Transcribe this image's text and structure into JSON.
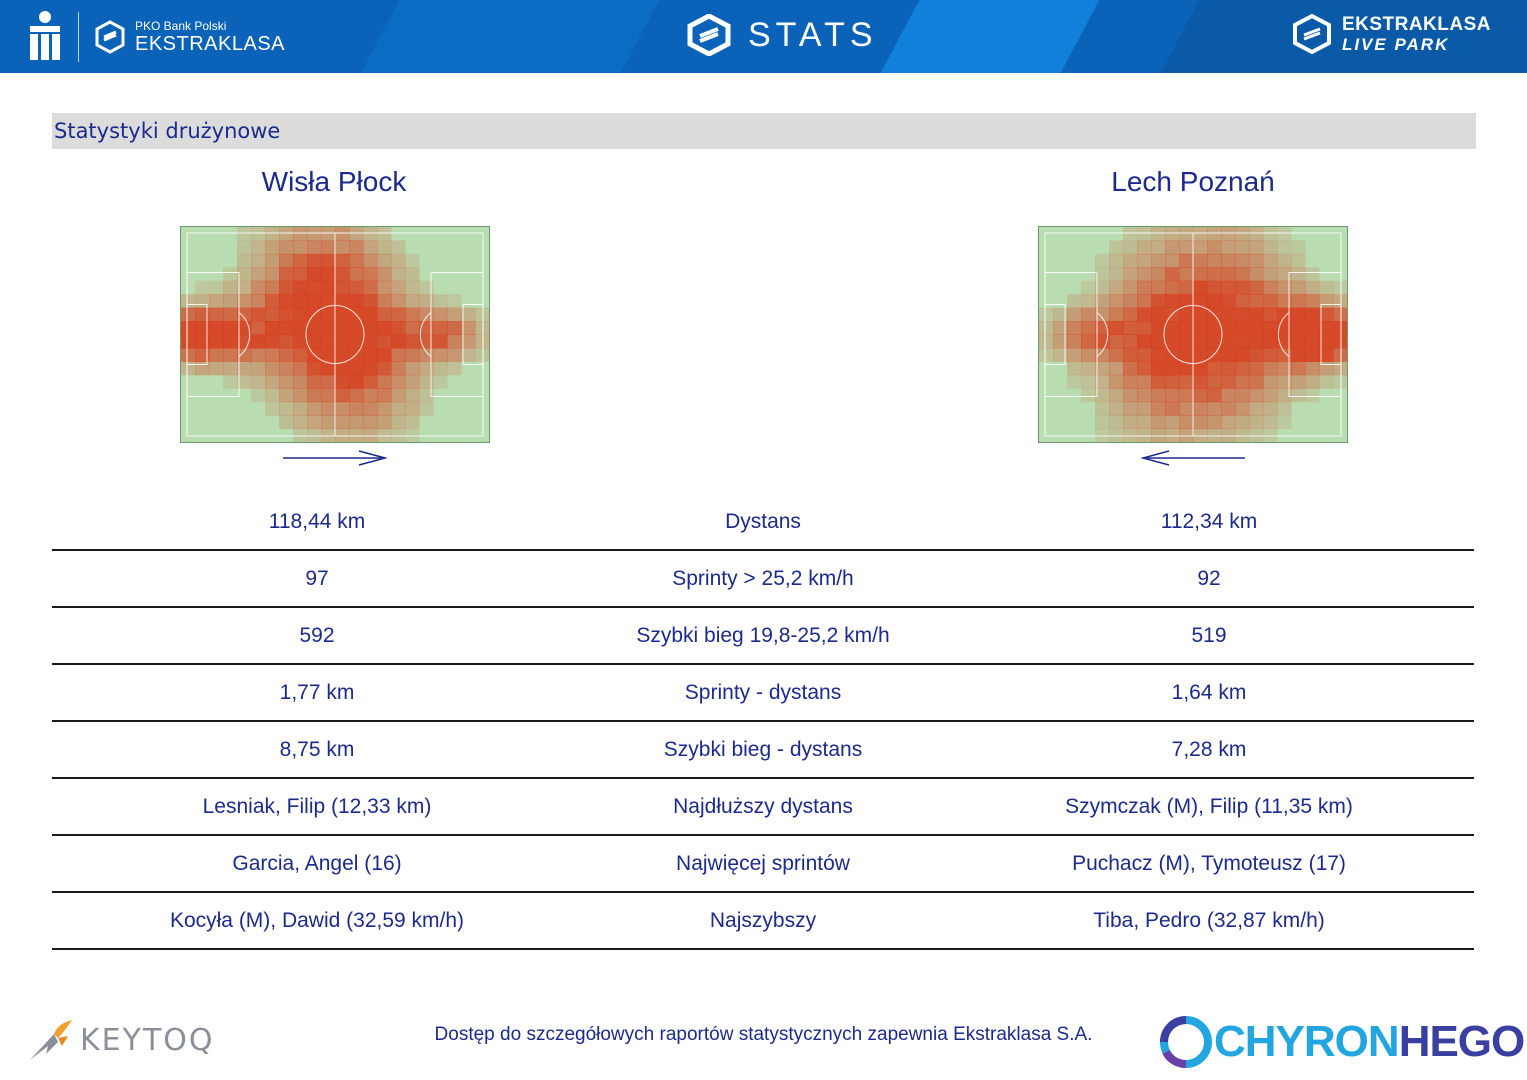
{
  "header": {
    "left_small": "PKO Bank Polski",
    "left_big": "EKSTRAKLASA",
    "center_title": "STATS",
    "right_line1": "EKSTRAKLASA",
    "right_line2": "LIVE PARK"
  },
  "section_title": "Statystyki drużynowe",
  "teams": {
    "home": "Wisła Płock",
    "away": "Lech Poznań"
  },
  "stats": [
    {
      "home": "118,44 km",
      "label": "Dystans",
      "away": "112,34 km"
    },
    {
      "home": "97",
      "label": "Sprinty > 25,2 km/h",
      "away": "92"
    },
    {
      "home": "592",
      "label": "Szybki bieg 19,8-25,2 km/h",
      "away": "519"
    },
    {
      "home": "1,77 km",
      "label": "Sprinty - dystans",
      "away": "1,64 km"
    },
    {
      "home": "8,75 km",
      "label": "Szybki bieg - dystans",
      "away": "7,28 km"
    },
    {
      "home": "Lesniak, Filip (12,33 km)",
      "label": "Najdłuższy dystans",
      "away": "Szymczak (M), Filip (11,35 km)"
    },
    {
      "home": "Garcia, Angel (16)",
      "label": "Najwięcej sprintów",
      "away": "Puchacz (M), Tymoteusz (17)"
    },
    {
      "home": "Kocyła (M), Dawid (32,59 km/h)",
      "label": "Najszybszy",
      "away": "Tiba, Pedro (32,87 km/h)"
    }
  ],
  "footer": {
    "note": "Dostęp do szczegółowych raportów statystycznych zapewnia Ekstraklasa S.A.",
    "left_logo": "KEYTOQ",
    "right_logo_a": "CHYRON",
    "right_logo_b": "HEGO"
  },
  "colors": {
    "header_blue": "#0a63b8",
    "text_navy": "#1c2a8c",
    "heat_red": "#d83a1a",
    "pitch_green": "#b9dcb0"
  }
}
